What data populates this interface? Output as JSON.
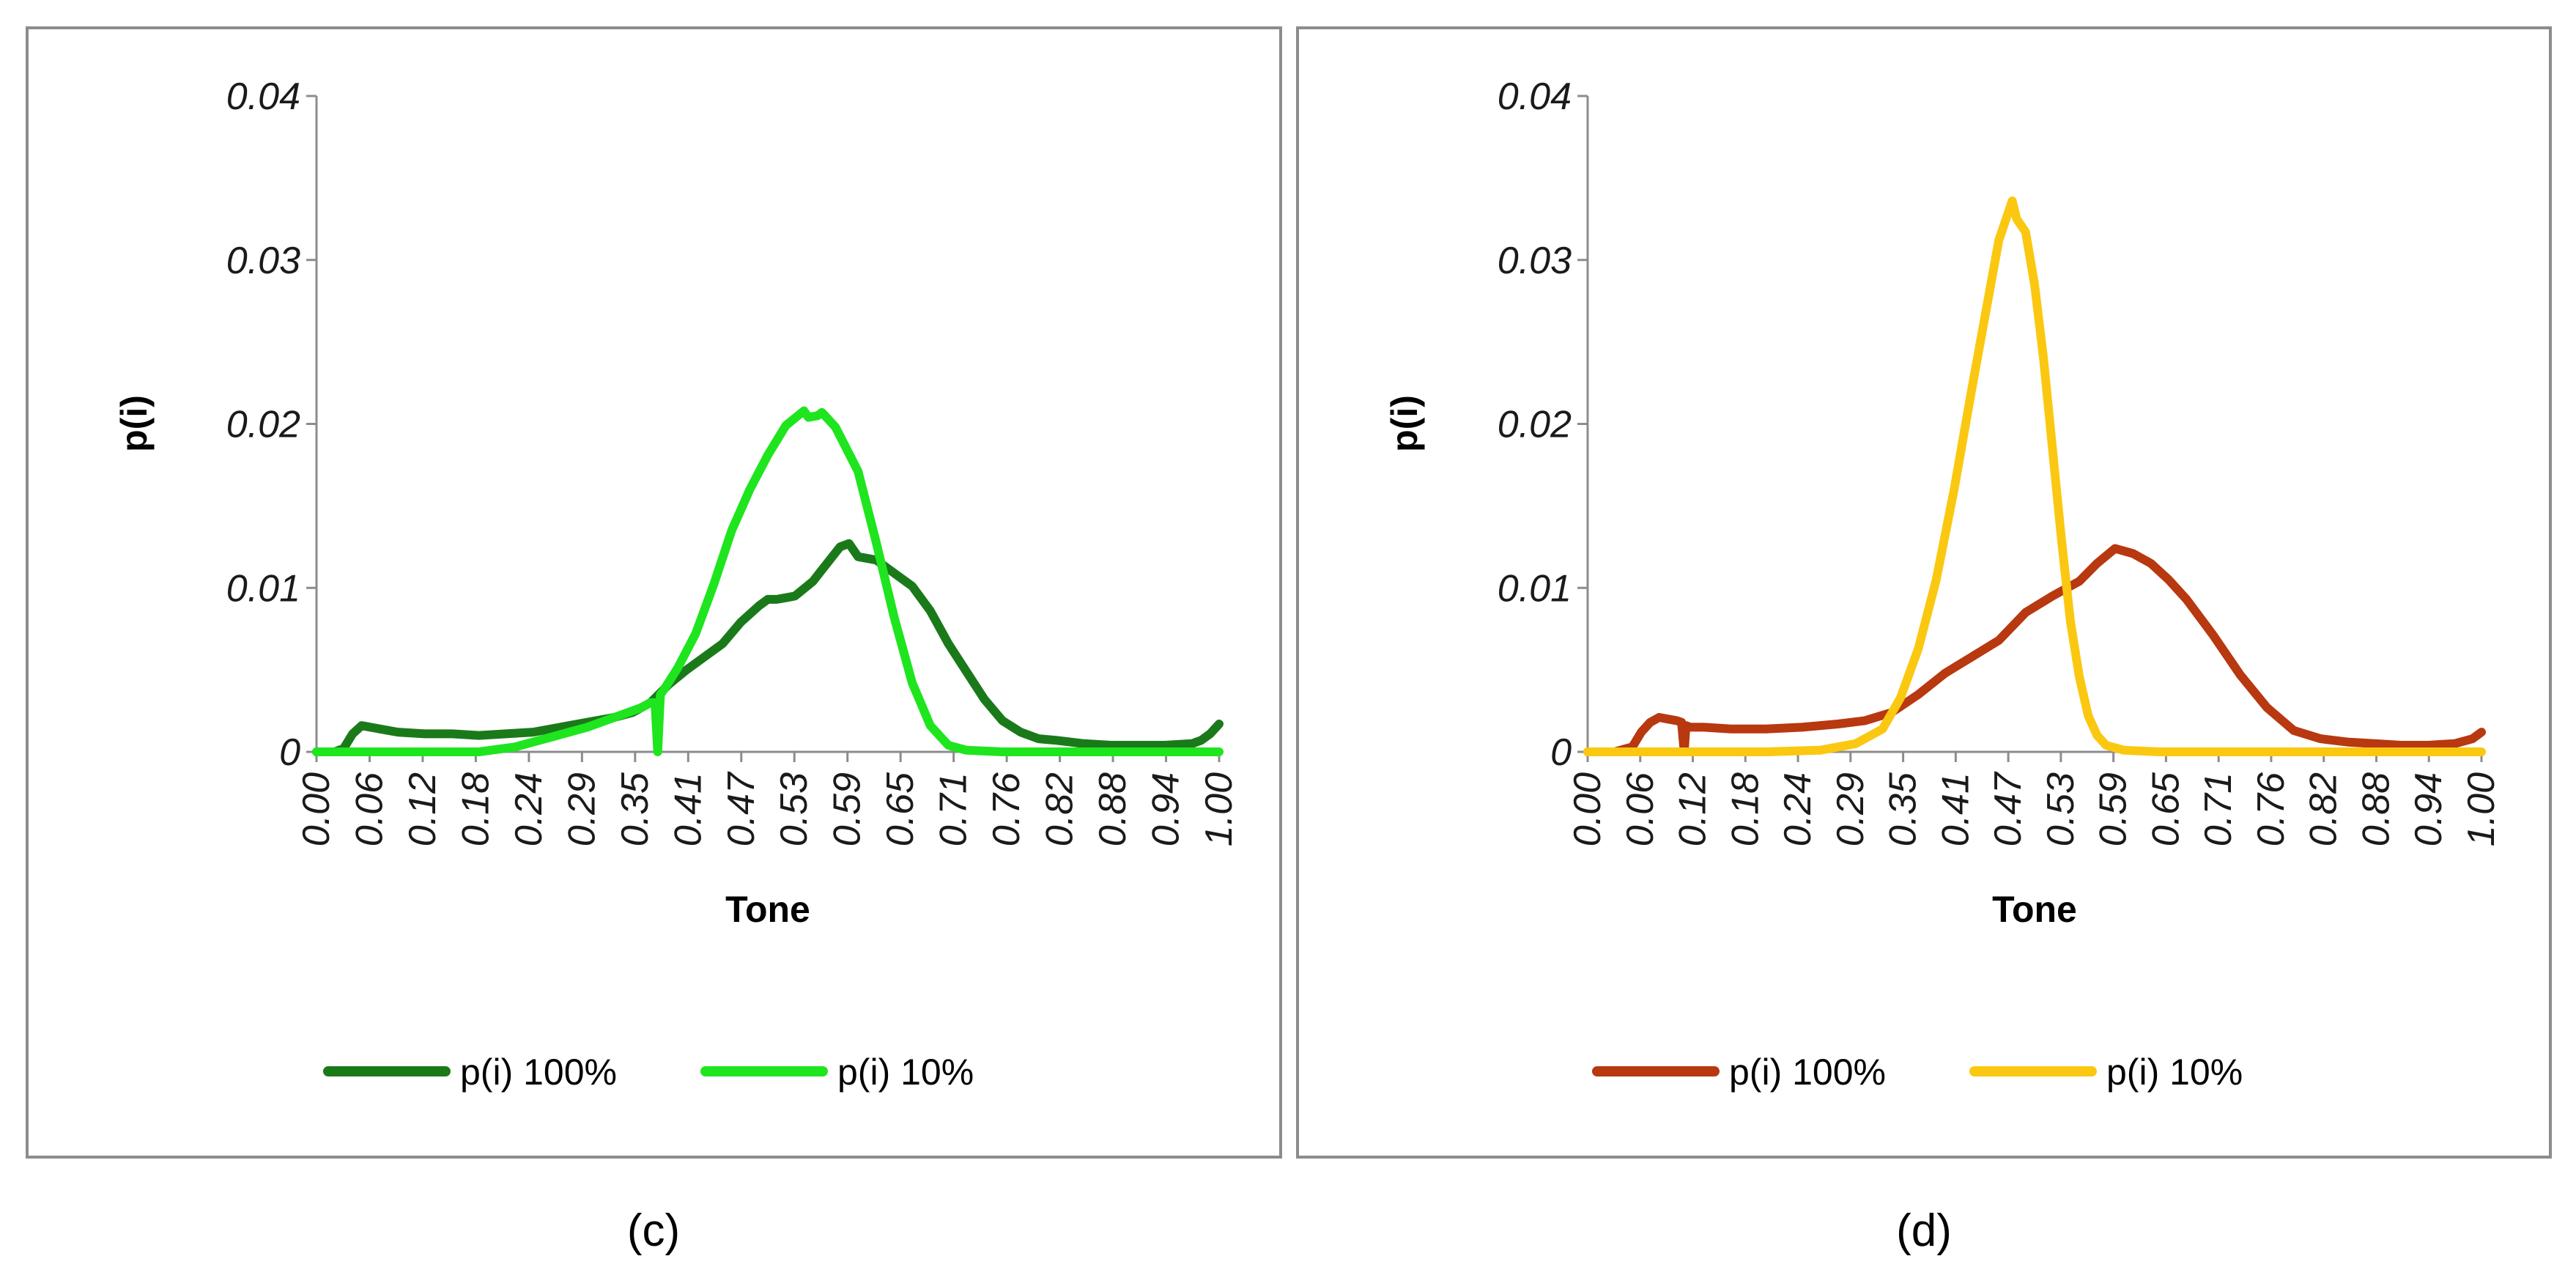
{
  "figure": {
    "panel_labels": [
      "(c)",
      "(d)"
    ]
  },
  "chart_data": [
    {
      "type": "line",
      "panel": "(c)",
      "title": "",
      "xlabel": "Tone",
      "ylabel": "p(i)",
      "ylim": [
        0,
        0.04
      ],
      "yticks": [
        "0",
        "0.01",
        "0.02",
        "0.03",
        "0.04"
      ],
      "xticks": [
        "0.00",
        "0.06",
        "0.12",
        "0.18",
        "0.24",
        "0.29",
        "0.35",
        "0.41",
        "0.47",
        "0.53",
        "0.59",
        "0.65",
        "0.71",
        "0.76",
        "0.82",
        "0.88",
        "0.94",
        "1.00"
      ],
      "legend": "bottom",
      "series": [
        {
          "name": "p(i) 100%",
          "color": "#1a7a1a",
          "x": [
            0,
            0.02,
            0.03,
            0.04,
            0.05,
            0.07,
            0.09,
            0.12,
            0.15,
            0.18,
            0.21,
            0.24,
            0.27,
            0.3,
            0.33,
            0.35,
            0.37,
            0.39,
            0.41,
            0.43,
            0.45,
            0.47,
            0.49,
            0.5,
            0.51,
            0.52,
            0.53,
            0.55,
            0.56,
            0.58,
            0.59,
            0.6,
            0.62,
            0.64,
            0.66,
            0.68,
            0.7,
            0.72,
            0.74,
            0.76,
            0.78,
            0.8,
            0.82,
            0.85,
            0.88,
            0.91,
            0.94,
            0.97,
            0.98,
            0.99,
            1.0
          ],
          "values": [
            0,
            0,
            0.0002,
            0.0011,
            0.0016,
            0.0014,
            0.0012,
            0.0011,
            0.0011,
            0.001,
            0.0011,
            0.0012,
            0.0015,
            0.0018,
            0.0021,
            0.0024,
            0.003,
            0.0041,
            0.005,
            0.0058,
            0.0066,
            0.0079,
            0.0089,
            0.0093,
            0.0093,
            0.0094,
            0.0095,
            0.0104,
            0.0111,
            0.0125,
            0.0127,
            0.0119,
            0.0117,
            0.0109,
            0.0101,
            0.0086,
            0.0066,
            0.0049,
            0.0032,
            0.0019,
            0.0012,
            0.0008,
            0.0007,
            0.0005,
            0.0004,
            0.0004,
            0.0004,
            0.0005,
            0.0007,
            0.0011,
            0.0017
          ]
        },
        {
          "name": "p(i) 10%",
          "color": "#1ee51e",
          "x": [
            0,
            0.1,
            0.18,
            0.22,
            0.26,
            0.3,
            0.33,
            0.36,
            0.37,
            0.375,
            0.378,
            0.381,
            0.385,
            0.4,
            0.42,
            0.44,
            0.46,
            0.48,
            0.5,
            0.52,
            0.54,
            0.545,
            0.555,
            0.56,
            0.575,
            0.6,
            0.62,
            0.64,
            0.66,
            0.68,
            0.7,
            0.72,
            0.76,
            0.85,
            1.0
          ],
          "values": [
            0,
            0,
            0,
            0.0003,
            0.0009,
            0.0015,
            0.0021,
            0.0027,
            0.003,
            0.003,
            0,
            0.0035,
            0.0038,
            0.0051,
            0.0072,
            0.0102,
            0.0135,
            0.016,
            0.0181,
            0.0199,
            0.0208,
            0.0204,
            0.0205,
            0.0207,
            0.0198,
            0.0171,
            0.0128,
            0.0082,
            0.0042,
            0.0016,
            0.0004,
            0.0001,
            0,
            0,
            0
          ]
        }
      ]
    },
    {
      "type": "line",
      "panel": "(d)",
      "title": "",
      "xlabel": "Tone",
      "ylabel": "p(i)",
      "ylim": [
        0,
        0.04
      ],
      "yticks": [
        "0",
        "0.01",
        "0.02",
        "0.03",
        "0.04"
      ],
      "xticks": [
        "0.00",
        "0.06",
        "0.12",
        "0.18",
        "0.24",
        "0.29",
        "0.35",
        "0.41",
        "0.47",
        "0.53",
        "0.59",
        "0.65",
        "0.71",
        "0.76",
        "0.82",
        "0.88",
        "0.94",
        "1.00"
      ],
      "legend": "bottom",
      "series": [
        {
          "name": "p(i) 100%",
          "color": "#b8380f",
          "x": [
            0,
            0.03,
            0.05,
            0.06,
            0.07,
            0.08,
            0.09,
            0.1,
            0.105,
            0.108,
            0.11,
            0.115,
            0.13,
            0.16,
            0.2,
            0.24,
            0.28,
            0.31,
            0.34,
            0.37,
            0.4,
            0.43,
            0.46,
            0.49,
            0.52,
            0.55,
            0.57,
            0.59,
            0.61,
            0.63,
            0.65,
            0.67,
            0.7,
            0.73,
            0.76,
            0.79,
            0.82,
            0.85,
            0.88,
            0.91,
            0.94,
            0.97,
            0.99,
            1.0
          ],
          "values": [
            0,
            0,
            0.0003,
            0.0012,
            0.0018,
            0.0021,
            0.002,
            0.0019,
            0.0018,
            0,
            0.0016,
            0.0015,
            0.0015,
            0.0014,
            0.0014,
            0.0015,
            0.0017,
            0.0019,
            0.0024,
            0.0035,
            0.0048,
            0.0058,
            0.0068,
            0.0085,
            0.0095,
            0.0104,
            0.0115,
            0.0124,
            0.0121,
            0.0115,
            0.0105,
            0.0093,
            0.0071,
            0.0047,
            0.0027,
            0.0013,
            0.0008,
            0.0006,
            0.0005,
            0.0004,
            0.0004,
            0.0005,
            0.0008,
            0.0012
          ]
        },
        {
          "name": "p(i) 10%",
          "color": "#fbc811",
          "x": [
            0,
            0.2,
            0.26,
            0.3,
            0.33,
            0.35,
            0.37,
            0.39,
            0.41,
            0.43,
            0.45,
            0.46,
            0.47,
            0.475,
            0.48,
            0.49,
            0.5,
            0.51,
            0.52,
            0.53,
            0.54,
            0.55,
            0.56,
            0.57,
            0.58,
            0.6,
            0.64,
            0.7,
            1.0
          ],
          "values": [
            0,
            0,
            0.0001,
            0.0005,
            0.0014,
            0.0033,
            0.0063,
            0.0105,
            0.016,
            0.0222,
            0.0282,
            0.0312,
            0.0328,
            0.0336,
            0.0325,
            0.0317,
            0.0285,
            0.024,
            0.0185,
            0.013,
            0.008,
            0.0046,
            0.0022,
            0.001,
            0.0004,
            0.0001,
            0,
            0,
            0
          ]
        }
      ]
    }
  ]
}
